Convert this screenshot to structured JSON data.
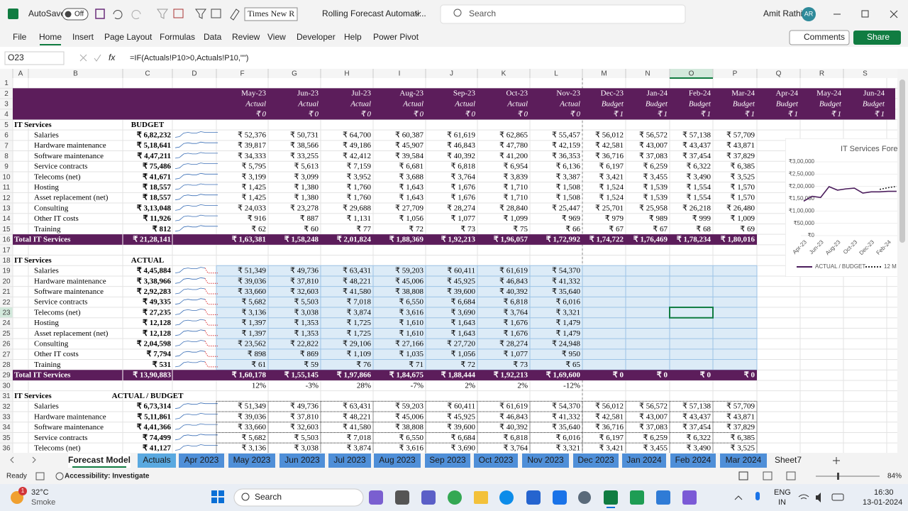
{
  "titlebar": {
    "autosave": "AutoSave",
    "toggle": "Off",
    "font": "Times New R",
    "filename": "Rolling Forecast Automati...",
    "search": "Search",
    "user": "Amit Rathi",
    "initials": "AR"
  },
  "menu": {
    "items": [
      "File",
      "Home",
      "Insert",
      "Page Layout",
      "Formulas",
      "Data",
      "Review",
      "View",
      "Developer",
      "Help",
      "Power Pivot"
    ],
    "comments": "Comments",
    "share": "Share"
  },
  "formula_bar": {
    "cell": "O23",
    "fx": "fx",
    "formula": "=IF(Actuals!P10>0,Actuals!P10,\"\")"
  },
  "sheet": {
    "columns": [
      "A",
      "B",
      "C",
      "D",
      "F",
      "G",
      "H",
      "I",
      "J",
      "K",
      "L",
      "M",
      "N",
      "O",
      "P",
      "Q",
      "R",
      "S"
    ],
    "row_numbers": [
      1,
      2,
      3,
      4,
      5,
      6,
      7,
      8,
      9,
      10,
      11,
      12,
      13,
      14,
      15,
      16,
      17,
      18,
      19,
      20,
      21,
      22,
      23,
      24,
      25,
      26,
      27,
      28,
      29,
      30,
      31,
      32,
      33,
      34,
      35,
      36
    ],
    "months": [
      "May-23",
      "Jun-23",
      "Jul-23",
      "Aug-23",
      "Sep-23",
      "Oct-23",
      "Nov-23",
      "Dec-23",
      "Jan-24",
      "Feb-24",
      "Mar-24",
      "Apr-24",
      "May-24",
      "Jun-24"
    ],
    "kinds": [
      "Actual",
      "Actual",
      "Actual",
      "Actual",
      "Actual",
      "Actual",
      "Actual",
      "Budget",
      "Budget",
      "Budget",
      "Budget",
      "Budget",
      "Budget",
      "Budget"
    ],
    "flags": [
      "₹ 0",
      "₹ 0",
      "₹ 0",
      "₹ 0",
      "₹ 0",
      "₹ 0",
      "₹ 0",
      "₹ 1",
      "₹ 1",
      "₹ 1",
      "₹ 1",
      "₹ 1",
      "₹ 1",
      "₹ 1"
    ],
    "budget": {
      "section": "IT Services",
      "heading": "BUDGET",
      "items": [
        {
          "label": "Salaries",
          "total": "₹ 6,82,232",
          "values": [
            "₹ 52,376",
            "₹ 50,731",
            "₹ 64,700",
            "₹ 60,387",
            "₹ 61,619",
            "₹ 62,865",
            "₹ 55,457",
            "₹ 56,012",
            "₹ 56,572",
            "₹ 57,138",
            "₹ 57,709"
          ]
        },
        {
          "label": "Hardware maintenance",
          "total": "₹ 5,18,641",
          "values": [
            "₹ 39,817",
            "₹ 38,566",
            "₹ 49,186",
            "₹ 45,907",
            "₹ 46,843",
            "₹ 47,780",
            "₹ 42,159",
            "₹ 42,581",
            "₹ 43,007",
            "₹ 43,437",
            "₹ 43,871"
          ]
        },
        {
          "label": "Software maintenance",
          "total": "₹ 4,47,211",
          "values": [
            "₹ 34,333",
            "₹ 33,255",
            "₹ 42,412",
            "₹ 39,584",
            "₹ 40,392",
            "₹ 41,200",
            "₹ 36,353",
            "₹ 36,716",
            "₹ 37,083",
            "₹ 37,454",
            "₹ 37,829"
          ]
        },
        {
          "label": "Service contracts",
          "total": "₹ 75,486",
          "values": [
            "₹ 5,795",
            "₹ 5,613",
            "₹ 7,159",
            "₹ 6,681",
            "₹ 6,818",
            "₹ 6,954",
            "₹ 6,136",
            "₹ 6,197",
            "₹ 6,259",
            "₹ 6,322",
            "₹ 6,385"
          ]
        },
        {
          "label": "Telecoms (net)",
          "total": "₹ 41,671",
          "values": [
            "₹ 3,199",
            "₹ 3,099",
            "₹ 3,952",
            "₹ 3,688",
            "₹ 3,764",
            "₹ 3,839",
            "₹ 3,387",
            "₹ 3,421",
            "₹ 3,455",
            "₹ 3,490",
            "₹ 3,525"
          ]
        },
        {
          "label": "Hosting",
          "total": "₹ 18,557",
          "values": [
            "₹ 1,425",
            "₹ 1,380",
            "₹ 1,760",
            "₹ 1,643",
            "₹ 1,676",
            "₹ 1,710",
            "₹ 1,508",
            "₹ 1,524",
            "₹ 1,539",
            "₹ 1,554",
            "₹ 1,570"
          ]
        },
        {
          "label": "Asset replacement (net)",
          "total": "₹ 18,557",
          "values": [
            "₹ 1,425",
            "₹ 1,380",
            "₹ 1,760",
            "₹ 1,643",
            "₹ 1,676",
            "₹ 1,710",
            "₹ 1,508",
            "₹ 1,524",
            "₹ 1,539",
            "₹ 1,554",
            "₹ 1,570"
          ]
        },
        {
          "label": "Consulting",
          "total": "₹ 3,13,048",
          "values": [
            "₹ 24,033",
            "₹ 23,278",
            "₹ 29,688",
            "₹ 27,709",
            "₹ 28,274",
            "₹ 28,840",
            "₹ 25,447",
            "₹ 25,701",
            "₹ 25,958",
            "₹ 26,218",
            "₹ 26,480"
          ]
        },
        {
          "label": "Other IT costs",
          "total": "₹ 11,926",
          "values": [
            "₹ 916",
            "₹ 887",
            "₹ 1,131",
            "₹ 1,056",
            "₹ 1,077",
            "₹ 1,099",
            "₹ 969",
            "₹ 979",
            "₹ 989",
            "₹ 999",
            "₹ 1,009"
          ]
        },
        {
          "label": "Training",
          "total": "₹ 812",
          "values": [
            "₹ 62",
            "₹ 60",
            "₹ 77",
            "₹ 72",
            "₹ 73",
            "₹ 75",
            "₹ 66",
            "₹ 67",
            "₹ 67",
            "₹ 68",
            "₹ 69"
          ]
        }
      ],
      "total": {
        "label": "Total IT Services",
        "total": "₹ 21,28,141",
        "values": [
          "₹ 1,63,381",
          "₹ 1,58,248",
          "₹ 2,01,824",
          "₹ 1,88,369",
          "₹ 1,92,213",
          "₹ 1,96,057",
          "₹ 1,72,992",
          "₹ 1,74,722",
          "₹ 1,76,469",
          "₹ 1,78,234",
          "₹ 1,80,016"
        ]
      }
    },
    "actual": {
      "section": "IT Services",
      "heading": "ACTUAL",
      "items": [
        {
          "label": "Salaries",
          "total": "₹ 4,45,884",
          "values": [
            "₹ 51,349",
            "₹ 49,736",
            "₹ 63,431",
            "₹ 59,203",
            "₹ 60,411",
            "₹ 61,619",
            "₹ 54,370"
          ]
        },
        {
          "label": "Hardware maintenance",
          "total": "₹ 3,38,966",
          "values": [
            "₹ 39,036",
            "₹ 37,810",
            "₹ 48,221",
            "₹ 45,006",
            "₹ 45,925",
            "₹ 46,843",
            "₹ 41,332"
          ]
        },
        {
          "label": "Software maintenance",
          "total": "₹ 2,92,283",
          "values": [
            "₹ 33,660",
            "₹ 32,603",
            "₹ 41,580",
            "₹ 38,808",
            "₹ 39,600",
            "₹ 40,392",
            "₹ 35,640"
          ]
        },
        {
          "label": "Service contracts",
          "total": "₹ 49,335",
          "values": [
            "₹ 5,682",
            "₹ 5,503",
            "₹ 7,018",
            "₹ 6,550",
            "₹ 6,684",
            "₹ 6,818",
            "₹ 6,016"
          ]
        },
        {
          "label": "Telecoms (net)",
          "total": "₹ 27,235",
          "values": [
            "₹ 3,136",
            "₹ 3,038",
            "₹ 3,874",
            "₹ 3,616",
            "₹ 3,690",
            "₹ 3,764",
            "₹ 3,321"
          ]
        },
        {
          "label": "Hosting",
          "total": "₹ 12,128",
          "values": [
            "₹ 1,397",
            "₹ 1,353",
            "₹ 1,725",
            "₹ 1,610",
            "₹ 1,643",
            "₹ 1,676",
            "₹ 1,479"
          ]
        },
        {
          "label": "Asset replacement (net)",
          "total": "₹ 12,128",
          "values": [
            "₹ 1,397",
            "₹ 1,353",
            "₹ 1,725",
            "₹ 1,610",
            "₹ 1,643",
            "₹ 1,676",
            "₹ 1,479"
          ]
        },
        {
          "label": "Consulting",
          "total": "₹ 2,04,598",
          "values": [
            "₹ 23,562",
            "₹ 22,822",
            "₹ 29,106",
            "₹ 27,166",
            "₹ 27,720",
            "₹ 28,274",
            "₹ 24,948"
          ]
        },
        {
          "label": "Other IT costs",
          "total": "₹ 7,794",
          "values": [
            "₹ 898",
            "₹ 869",
            "₹ 1,109",
            "₹ 1,035",
            "₹ 1,056",
            "₹ 1,077",
            "₹ 950"
          ]
        },
        {
          "label": "Training",
          "total": "₹ 531",
          "values": [
            "₹ 61",
            "₹ 59",
            "₹ 76",
            "₹ 71",
            "₹ 72",
            "₹ 73",
            "₹ 65"
          ]
        }
      ],
      "total": {
        "label": "Total IT Services",
        "total": "₹ 13,90,883",
        "values": [
          "₹ 1,60,178",
          "₹ 1,55,145",
          "₹ 1,97,866",
          "₹ 1,84,675",
          "₹ 1,88,444",
          "₹ 1,92,213",
          "₹ 1,69,600",
          "₹ 0",
          "₹ 0",
          "₹ 0",
          "₹ 0"
        ]
      },
      "variance": [
        "12%",
        "-3%",
        "28%",
        "-7%",
        "2%",
        "2%",
        "-12%"
      ]
    },
    "actual_budget": {
      "section": "IT Services",
      "heading": "ACTUAL / BUDGET",
      "items": [
        {
          "label": "Salaries",
          "total": "₹ 6,73,314",
          "values": [
            "₹ 51,349",
            "₹ 49,736",
            "₹ 63,431",
            "₹ 59,203",
            "₹ 60,411",
            "₹ 61,619",
            "₹ 54,370",
            "₹ 56,012",
            "₹ 56,572",
            "₹ 57,138",
            "₹ 57,709"
          ]
        },
        {
          "label": "Hardware maintenance",
          "total": "₹ 5,11,861",
          "values": [
            "₹ 39,036",
            "₹ 37,810",
            "₹ 48,221",
            "₹ 45,006",
            "₹ 45,925",
            "₹ 46,843",
            "₹ 41,332",
            "₹ 42,581",
            "₹ 43,007",
            "₹ 43,437",
            "₹ 43,871"
          ]
        },
        {
          "label": "Software maintenance",
          "total": "₹ 4,41,366",
          "values": [
            "₹ 33,660",
            "₹ 32,603",
            "₹ 41,580",
            "₹ 38,808",
            "₹ 39,600",
            "₹ 40,392",
            "₹ 35,640",
            "₹ 36,716",
            "₹ 37,083",
            "₹ 37,454",
            "₹ 37,829"
          ]
        },
        {
          "label": "Service contracts",
          "total": "₹ 74,499",
          "values": [
            "₹ 5,682",
            "₹ 5,503",
            "₹ 7,018",
            "₹ 6,550",
            "₹ 6,684",
            "₹ 6,818",
            "₹ 6,016",
            "₹ 6,197",
            "₹ 6,259",
            "₹ 6,322",
            "₹ 6,385"
          ]
        },
        {
          "label": "Telecoms (net)",
          "total": "₹ 41,127",
          "values": [
            "₹ 3,136",
            "₹ 3,038",
            "₹ 3,874",
            "₹ 3,616",
            "₹ 3,690",
            "₹ 3,764",
            "₹ 3,321",
            "₹ 3,421",
            "₹ 3,455",
            "₹ 3,490",
            "₹ 3,525"
          ]
        }
      ]
    }
  },
  "chart_data": {
    "type": "line",
    "title": "IT Services Fore",
    "categories": [
      "Apr-23",
      null,
      "Jun-23",
      null,
      "Aug-23",
      null,
      "Oct-23",
      null,
      "Dec-23",
      null,
      "Feb-24",
      null
    ],
    "series": [
      {
        "name": "ACTUAL / BUDGET",
        "color": "#4b1d5c",
        "values": [
          140000,
          160000,
          155000,
          199000,
          185000,
          190000,
          193000,
          173000,
          178000,
          178000,
          180000,
          180000
        ]
      },
      {
        "name": "12 M",
        "color": "#2b2b2b",
        "values": [
          null,
          null,
          null,
          null,
          null,
          null,
          null,
          null,
          null,
          188000,
          195000,
          200000
        ]
      }
    ],
    "ylim": [
      0,
      300000
    ],
    "yticks": [
      {
        "value": 0,
        "label": "₹0"
      },
      {
        "value": 50000,
        "label": "₹50,000"
      },
      {
        "value": 100000,
        "label": "₹1,00,000"
      },
      {
        "value": 150000,
        "label": "₹1,50,000"
      },
      {
        "value": 200000,
        "label": "₹2,00,000"
      },
      {
        "value": 250000,
        "label": "₹2,50,000"
      },
      {
        "value": 300000,
        "label": "₹3,00,000"
      }
    ]
  },
  "tabs": {
    "items": [
      "Forecast Model",
      "Actuals",
      "Apr 2023",
      "May 2023",
      "Jun 2023",
      "Jul 2023",
      "Aug 2023",
      "Sep 2023",
      "Oct 2023",
      "Nov 2023",
      "Dec 2023",
      "Jan 2024",
      "Feb 2024",
      "Mar 2024",
      "Sheet7"
    ]
  },
  "status": {
    "ready": "Ready",
    "accessibility": "Accessibility: Investigate",
    "zoom": "84%"
  },
  "taskbar": {
    "badge": "1",
    "temp": "32°C",
    "weather": "Smoke",
    "search": "Search",
    "lang": "ENG",
    "region": "IN",
    "time": "16:30",
    "date": "13-01-2024"
  }
}
